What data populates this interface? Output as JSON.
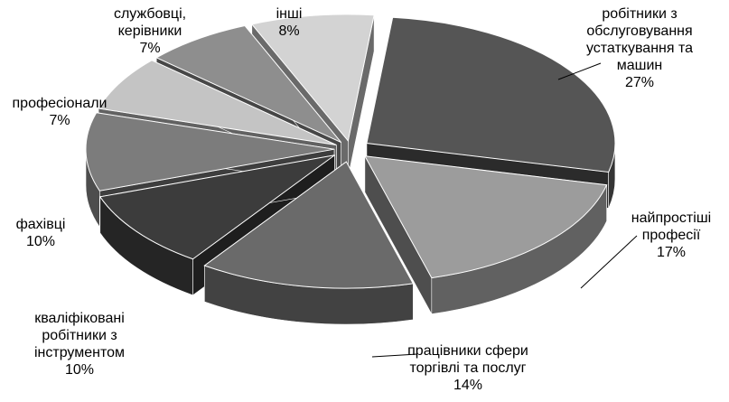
{
  "chart_data": {
    "type": "pie",
    "style": "3d-exploded",
    "slices": [
      {
        "label": [
          "робітники з",
          "обслуговування",
          "устаткування та",
          "машин"
        ],
        "percent_label": "27%",
        "value": 27,
        "color": "#555555"
      },
      {
        "label": [
          "найпростіші",
          "професії"
        ],
        "percent_label": "17%",
        "value": 17,
        "color": "#9c9c9c"
      },
      {
        "label": [
          "працівники  сфери",
          "торгівлі та послуг"
        ],
        "percent_label": "14%",
        "value": 14,
        "color": "#6a6a6a"
      },
      {
        "label": [
          "кваліфіковані",
          "робітники з",
          "інструментом"
        ],
        "percent_label": "10%",
        "value": 10,
        "color": "#3c3c3c"
      },
      {
        "label": [
          "фахівці"
        ],
        "percent_label": "10%",
        "value": 10,
        "color": "#7c7c7c"
      },
      {
        "label": [
          "професіонали"
        ],
        "percent_label": "7%",
        "value": 7,
        "color": "#c4c4c4"
      },
      {
        "label": [
          "службовці,",
          "керівники"
        ],
        "percent_label": "7%",
        "value": 7,
        "color": "#8e8e8e"
      },
      {
        "label": [
          "інші"
        ],
        "percent_label": "8%",
        "value": 8,
        "color": "#d3d3d3"
      }
    ]
  }
}
